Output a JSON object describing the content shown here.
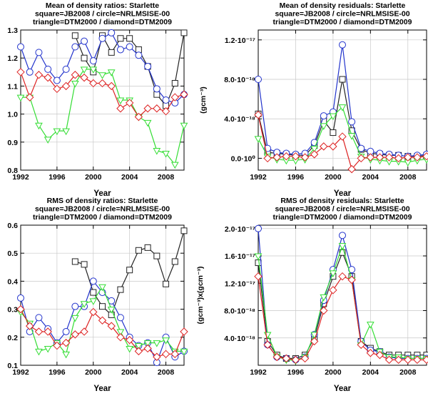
{
  "chart_data": [
    {
      "type": "line",
      "title": [
        "Mean of density ratios: Starlette",
        "square=JB2008 / circle=NRLMSISE-00",
        "triangle=DTM2000 / diamond=DTM2009"
      ],
      "xlabel": "Year",
      "ylabel": "",
      "xlim": [
        1992,
        2010
      ],
      "ylim": [
        0.8,
        1.3
      ],
      "xticks": [
        1992,
        1996,
        2000,
        2004,
        2008
      ],
      "yticks": [
        0.8,
        0.9,
        1.0,
        1.1,
        1.2,
        1.3
      ],
      "ytick_labels": [
        "0.8",
        "0.9",
        "1.0",
        "1.1",
        "1.2",
        "1.3"
      ],
      "x": [
        1992,
        1993,
        1994,
        1995,
        1996,
        1997,
        1998,
        1999,
        2000,
        2001,
        2002,
        2003,
        2004,
        2005,
        2006,
        2007,
        2008,
        2009,
        2010
      ],
      "series": [
        {
          "name": "JB2008",
          "marker": "square",
          "color": "#222222",
          "values": [
            null,
            null,
            null,
            null,
            null,
            null,
            1.28,
            1.2,
            1.15,
            1.28,
            1.22,
            1.27,
            1.27,
            1.23,
            1.17,
            1.07,
            1.03,
            1.11,
            1.29
          ]
        },
        {
          "name": "NRLMSISE-00",
          "marker": "circle",
          "color": "#2233cc",
          "values": [
            1.24,
            1.15,
            1.22,
            1.16,
            1.12,
            1.16,
            1.24,
            1.26,
            1.19,
            1.27,
            1.29,
            1.23,
            1.24,
            1.21,
            1.17,
            1.09,
            1.05,
            1.04,
            1.07
          ]
        },
        {
          "name": "DTM2000",
          "marker": "triangle",
          "color": "#33dd33",
          "values": [
            1.06,
            1.06,
            0.96,
            0.91,
            0.94,
            0.94,
            1.11,
            1.16,
            1.16,
            1.14,
            1.15,
            1.05,
            1.05,
            0.99,
            0.97,
            0.87,
            0.86,
            0.82,
            0.96
          ]
        },
        {
          "name": "DTM2009",
          "marker": "diamond",
          "color": "#dd2222",
          "values": [
            1.15,
            1.06,
            1.14,
            1.13,
            1.09,
            1.1,
            1.14,
            1.13,
            1.11,
            1.11,
            1.1,
            1.02,
            1.04,
            0.99,
            1.02,
            1.02,
            1.01,
            1.06,
            1.07
          ]
        }
      ]
    },
    {
      "type": "line",
      "title": [
        "Mean of density residuals: Starlette",
        "square=JB2008 / circle=NRLMSISE-00",
        "triangle=DTM2000 / diamond=DTM2009"
      ],
      "xlabel": "Year",
      "ylabel": "(gcm⁻³)",
      "xlim": [
        1992,
        2010
      ],
      "ylim": [
        -1.2e-18,
        1.3e-17
      ],
      "xticks": [
        1992,
        1996,
        2000,
        2004,
        2008
      ],
      "yticks": [
        0,
        4e-18,
        8e-18,
        1.2e-17
      ],
      "ytick_labels": [
        "0.0·10⁰",
        "4.0·10⁻¹⁸",
        "8.0·10⁻¹⁸",
        "1.2·10⁻¹⁷"
      ],
      "x": [
        1992,
        1993,
        1994,
        1995,
        1996,
        1997,
        1998,
        1999,
        2000,
        2001,
        2002,
        2003,
        2004,
        2005,
        2006,
        2007,
        2008,
        2009,
        2010
      ],
      "series": [
        {
          "name": "JB2008",
          "marker": "square",
          "color": "#222222",
          "values": [
            4.5e-18,
            6e-19,
            5e-19,
            4e-19,
            3e-19,
            3e-19,
            1.3e-18,
            3.8e-18,
            2.6e-18,
            8e-18,
            2.8e-18,
            9e-19,
            5e-19,
            4e-19,
            3e-19,
            3e-19,
            2e-19,
            2e-19,
            3e-19
          ]
        },
        {
          "name": "NRLMSISE-00",
          "marker": "circle",
          "color": "#2233cc",
          "values": [
            8e-18,
            1e-18,
            6e-19,
            5e-19,
            4e-19,
            5e-19,
            1.6e-18,
            4.3e-18,
            4.7e-18,
            1.15e-17,
            3.7e-18,
            1e-18,
            7e-19,
            5e-19,
            4e-19,
            3e-19,
            2e-19,
            3e-19,
            4e-19
          ]
        },
        {
          "name": "DTM2000",
          "marker": "triangle",
          "color": "#33dd33",
          "values": [
            2e-18,
            2e-19,
            -1e-19,
            -2e-19,
            -2e-19,
            -1e-19,
            1e-18,
            3.3e-18,
            4.3e-18,
            5.2e-18,
            2.3e-18,
            2e-19,
            -1e-19,
            -2e-19,
            -3e-19,
            -3e-19,
            -4e-19,
            -2e-19,
            -1e-19
          ]
        },
        {
          "name": "DTM2009",
          "marker": "diamond",
          "color": "#dd2222",
          "values": [
            4.4e-18,
            0,
            1e-19,
            2e-19,
            2e-19,
            1e-19,
            4e-19,
            1.2e-18,
            1.2e-18,
            2.2e-18,
            -1.1e-18,
            0,
            1e-19,
            1e-19,
            1e-19,
            0,
            1e-19,
            1e-19,
            2e-19
          ]
        }
      ]
    },
    {
      "type": "line",
      "title": [
        "RMS of density ratios: Starlette",
        "square=JB2008 / circle=NRLMSISE-00",
        "triangle=DTM2000 / diamond=DTM2009"
      ],
      "xlabel": "Year",
      "ylabel": "",
      "xlim": [
        1992,
        2010
      ],
      "ylim": [
        0.1,
        0.6
      ],
      "xticks": [
        1992,
        1996,
        2000,
        2004,
        2008
      ],
      "yticks": [
        0.1,
        0.2,
        0.3,
        0.4,
        0.5,
        0.6
      ],
      "ytick_labels": [
        "0.1",
        "0.2",
        "0.3",
        "0.4",
        "0.5",
        "0.6"
      ],
      "x": [
        1992,
        1993,
        1994,
        1995,
        1996,
        1997,
        1998,
        1999,
        2000,
        2001,
        2002,
        2003,
        2004,
        2005,
        2006,
        2007,
        2008,
        2009,
        2010
      ],
      "series": [
        {
          "name": "JB2008",
          "marker": "square",
          "color": "#222222",
          "values": [
            null,
            null,
            null,
            null,
            null,
            null,
            0.47,
            0.46,
            0.36,
            0.31,
            0.28,
            0.37,
            0.44,
            0.51,
            0.52,
            0.49,
            0.39,
            0.47,
            0.58
          ]
        },
        {
          "name": "NRLMSISE-00",
          "marker": "circle",
          "color": "#2233cc",
          "values": [
            0.34,
            0.22,
            0.27,
            0.23,
            0.18,
            0.22,
            0.31,
            0.31,
            0.4,
            0.36,
            0.33,
            0.27,
            0.2,
            0.17,
            0.18,
            0.11,
            0.2,
            0.13,
            0.15
          ]
        },
        {
          "name": "DTM2000",
          "marker": "triangle",
          "color": "#33dd33",
          "values": [
            0.29,
            0.25,
            0.15,
            0.16,
            0.18,
            0.14,
            0.27,
            0.32,
            0.33,
            0.38,
            0.3,
            0.22,
            0.16,
            0.17,
            0.18,
            0.18,
            0.19,
            0.15,
            0.15
          ]
        },
        {
          "name": "DTM2009",
          "marker": "diamond",
          "color": "#dd2222",
          "values": [
            0.3,
            0.24,
            0.22,
            0.22,
            0.17,
            0.18,
            0.21,
            0.22,
            0.29,
            0.26,
            0.24,
            0.2,
            0.19,
            0.15,
            0.16,
            0.13,
            0.14,
            0.14,
            0.22
          ]
        }
      ]
    },
    {
      "type": "line",
      "title": [
        "RMS of density residuals: Starlette",
        "square=JB2008 / circle=NRLMSISE-00",
        "triangle=DTM2000 / diamond=DTM2009"
      ],
      "xlabel": "Year",
      "ylabel": "(gcm⁻³)x(gcm⁻³)",
      "xlim": [
        1992,
        2010
      ],
      "ylim": [
        0,
        2.05e-17
      ],
      "xticks": [
        1992,
        1996,
        2000,
        2004,
        2008
      ],
      "yticks": [
        4e-18,
        8e-18,
        1.2e-17,
        1.6e-17,
        2e-17
      ],
      "ytick_labels": [
        "4.0·10⁻¹⁸",
        "8.0·10⁻¹⁸",
        "1.2·10⁻¹⁷",
        "1.6·10⁻¹⁷",
        "2.0·10⁻¹⁷"
      ],
      "x": [
        1992,
        1993,
        1994,
        1995,
        1996,
        1997,
        1998,
        1999,
        2000,
        2001,
        2002,
        2003,
        2004,
        2005,
        2006,
        2007,
        2008,
        2009,
        2010
      ],
      "series": [
        {
          "name": "JB2008",
          "marker": "square",
          "color": "#222222",
          "values": [
            1.5e-17,
            3.5e-18,
            1.5e-18,
            1e-18,
            1e-18,
            1.5e-18,
            4e-18,
            9e-18,
            1.3e-17,
            1.65e-17,
            1.3e-17,
            3.5e-18,
            2.5e-18,
            2e-18,
            1.5e-18,
            1.5e-18,
            1.5e-18,
            1.5e-18,
            1.5e-18
          ]
        },
        {
          "name": "NRLMSISE-00",
          "marker": "circle",
          "color": "#2233cc",
          "values": [
            2e-17,
            3e-18,
            1.2e-18,
            1e-18,
            8e-19,
            1.2e-18,
            4.5e-18,
            9.5e-18,
            1.4e-17,
            1.9e-17,
            1.4e-17,
            3.5e-18,
            2.2e-18,
            2e-18,
            1.2e-18,
            1e-18,
            1e-18,
            1e-18,
            1e-18
          ]
        },
        {
          "name": "DTM2000",
          "marker": "triangle",
          "color": "#33dd33",
          "values": [
            1.6e-17,
            4.5e-18,
            1.3e-18,
            8e-19,
            7e-19,
            1.2e-18,
            4.5e-18,
            1e-17,
            1.35e-17,
            1.75e-17,
            1.25e-17,
            3e-18,
            6e-18,
            2e-18,
            1.2e-18,
            1.2e-18,
            1e-18,
            1e-18,
            1e-18
          ]
        },
        {
          "name": "DTM2009",
          "marker": "diamond",
          "color": "#dd2222",
          "values": [
            1.3e-17,
            3e-18,
            1.2e-18,
            1e-18,
            8e-19,
            1e-18,
            3.5e-18,
            8e-18,
            1.1e-17,
            1.3e-17,
            1.25e-17,
            3e-18,
            1.8e-18,
            1.5e-18,
            8e-19,
            8e-19,
            8e-19,
            8e-19,
            8e-19
          ]
        }
      ]
    }
  ]
}
